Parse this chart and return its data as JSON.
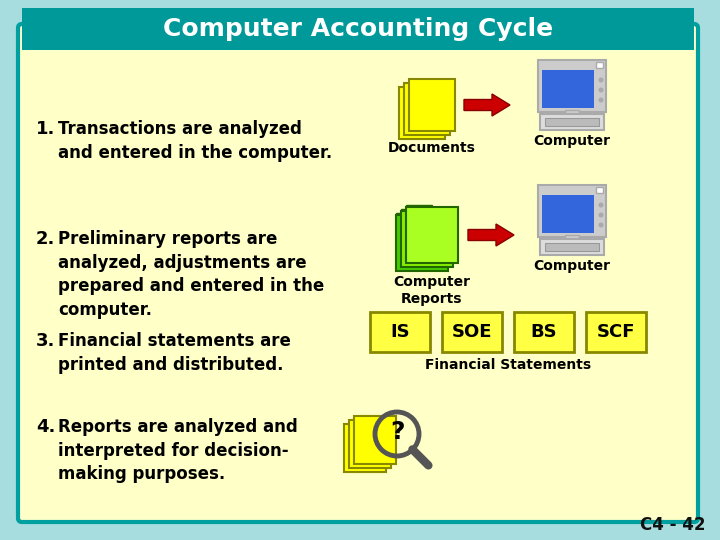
{
  "title": "Computer Accounting Cycle",
  "bg_outer": "#a8dde0",
  "bg_inner": "#ffffc8",
  "title_bg_left": "#009999",
  "title_bg_right": "#006666",
  "title_color": "#ffffff",
  "title_fontsize": 18,
  "slide_number": "C4 - 42",
  "border_color": "#00a0a0",
  "step1_text1": "1.  Transactions are analyzed",
  "step1_text2": "     and entered in the computer.",
  "step2_text1": "2.  Preliminary reports are",
  "step2_text2": "     analyzed, adjustments are",
  "step2_text3": "     prepared and entered in the",
  "step2_text4": "     computer.",
  "step3_text1": "3.  Financial statements are",
  "step3_text2": "     printed and distributed.",
  "step4_text1": "4.  Reports are analyzed and",
  "step4_text2": "     interpreted for decision-",
  "step4_text3": "     making purposes.",
  "doc_label": "Documents",
  "comp_label1": "Computer",
  "report_label": "Computer\nReports",
  "comp_label2": "Computer",
  "fin_label": "Financial Statements",
  "boxes": [
    "IS",
    "SOE",
    "BS",
    "SCF"
  ],
  "box_color": "#ffff44",
  "box_border": "#888800",
  "arrow_color": "#cc0000",
  "doc_yellow": "#ffff00",
  "doc_yellow_edge": "#888800",
  "doc_green1": "#44cc00",
  "doc_green2": "#88ee00",
  "doc_green3": "#aaff22",
  "doc_green_edge": "#226600",
  "monitor_frame": "#cccccc",
  "monitor_frame_edge": "#aaaaaa",
  "monitor_screen": "#3366dd",
  "monitor_base": "#dddddd",
  "monitor_base_edge": "#aaaaaa"
}
